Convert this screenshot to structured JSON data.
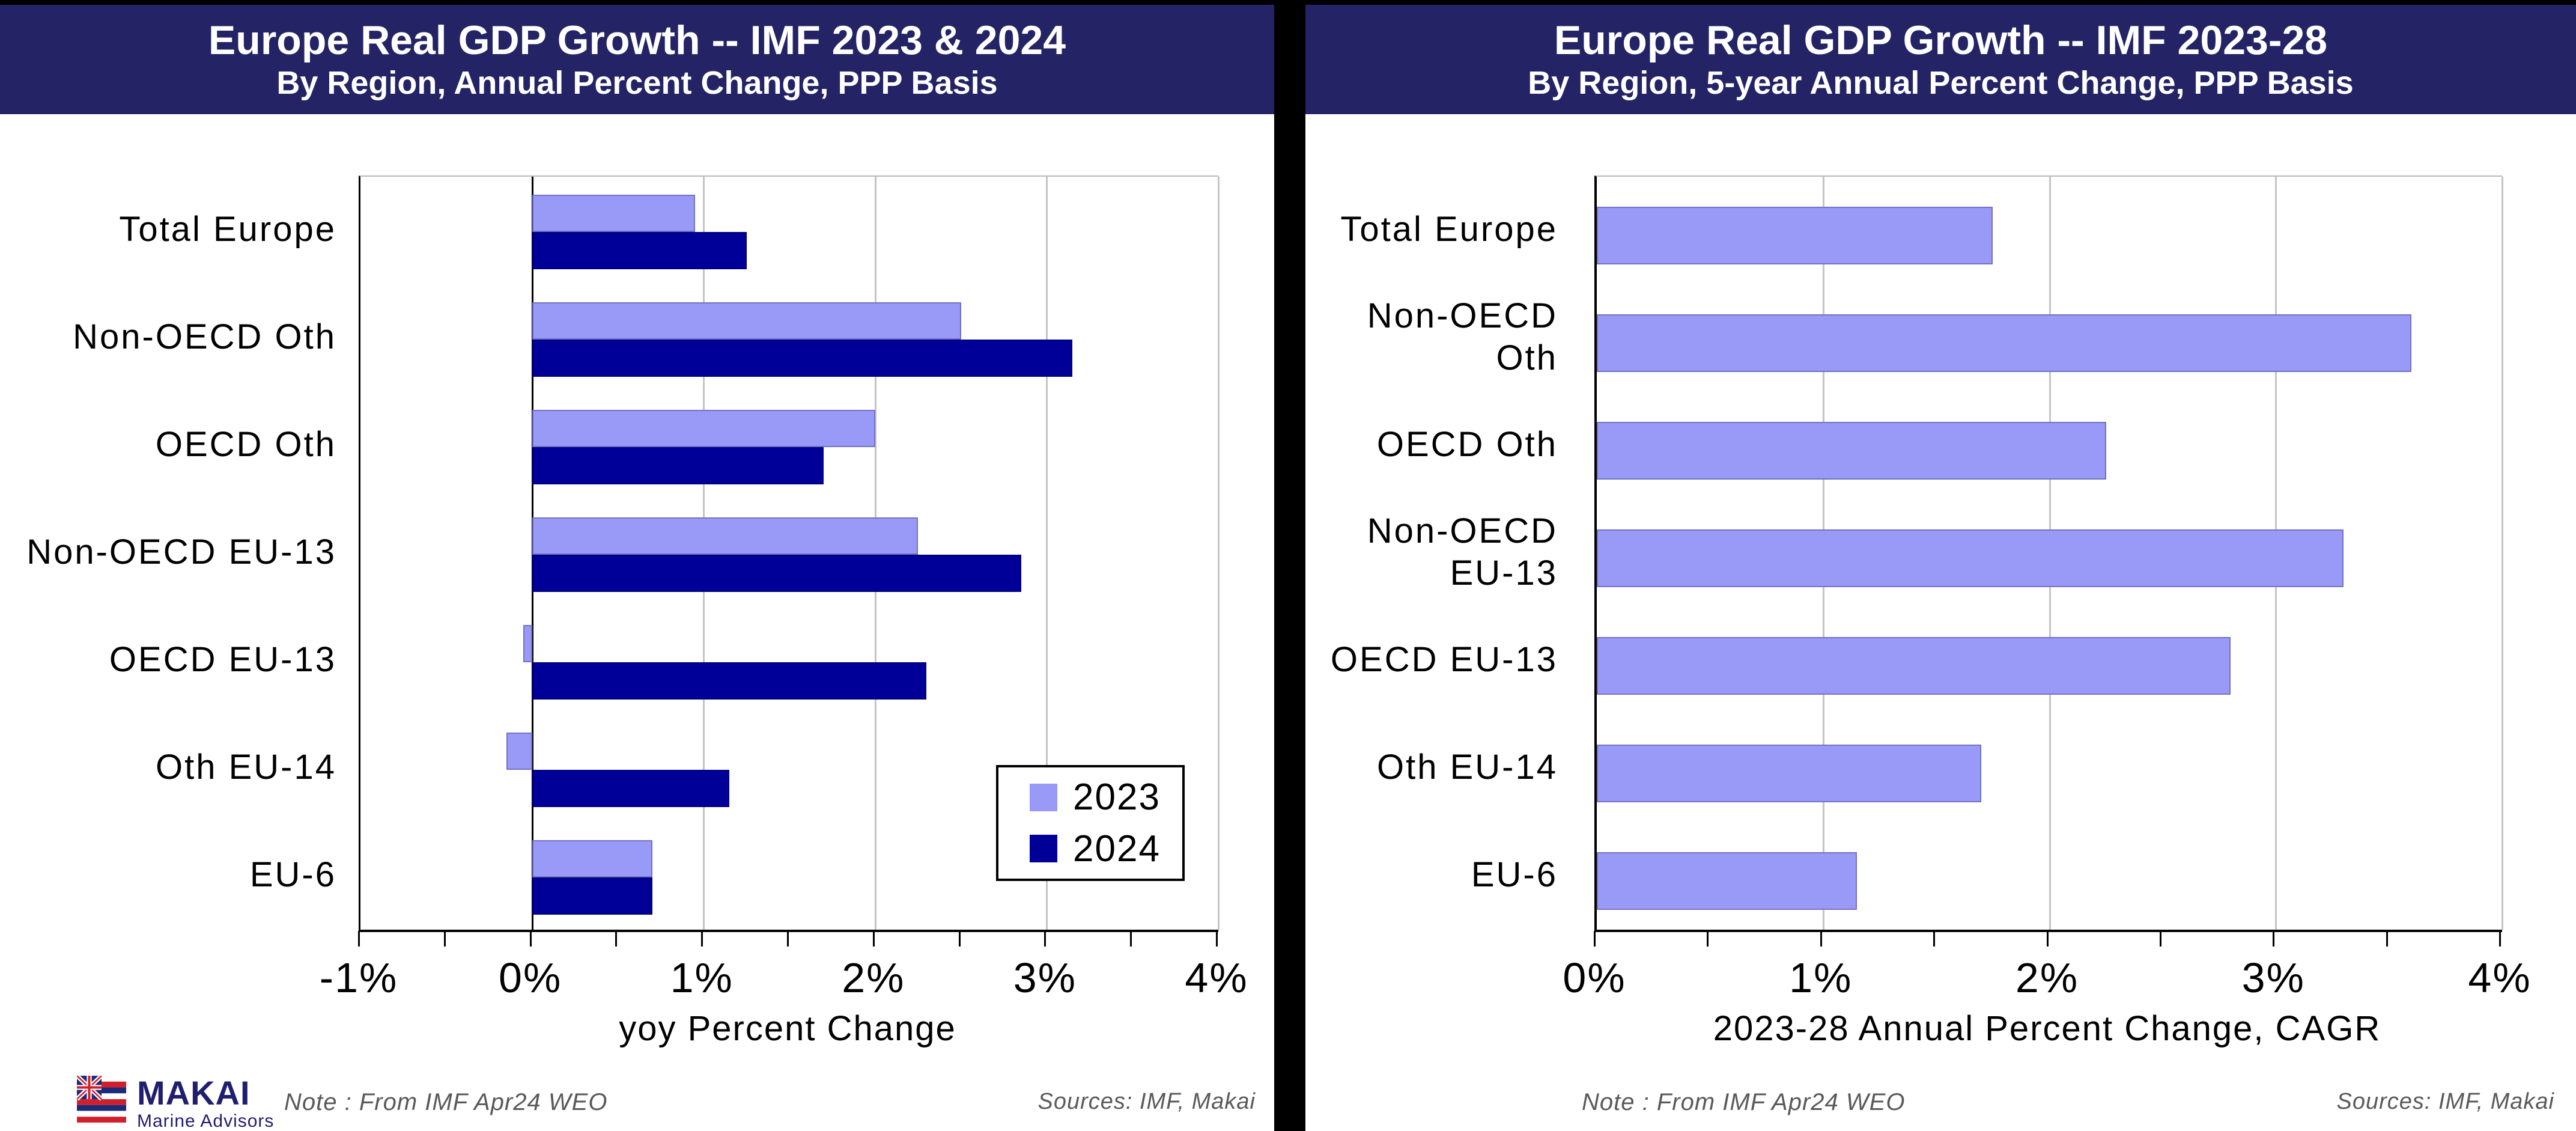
{
  "colors": {
    "title_bar_bg": "#232366",
    "series_2023": "#9999F8",
    "series_2024": "#000099",
    "gridline": "#C4C4C4",
    "note_text": "#595959",
    "divider": "#000000"
  },
  "chart_data": [
    {
      "type": "bar",
      "orientation": "horizontal",
      "title": "Europe Real GDP Growth -- IMF 2023 & 2024",
      "subtitle": "By Region, Annual Percent Change, PPP Basis",
      "categories": [
        "Total Europe",
        "Non-OECD Oth",
        "OECD Oth",
        "Non-OECD EU-13",
        "OECD EU-13",
        "Oth EU-14",
        "EU-6"
      ],
      "series": [
        {
          "name": "2023",
          "color": "#9999F8",
          "values": [
            0.95,
            2.5,
            2.0,
            2.25,
            -0.05,
            -0.15,
            0.7
          ]
        },
        {
          "name": "2024",
          "color": "#000099",
          "values": [
            1.25,
            3.15,
            1.7,
            2.85,
            2.3,
            1.15,
            0.7
          ]
        }
      ],
      "xlabel": "yoy Percent Change",
      "xlim": [
        -1,
        4
      ],
      "xtick_step": 1,
      "minor_tick_step": 0.5,
      "tick_format": "percent",
      "grid": true,
      "legend_position": "inside-right"
    },
    {
      "type": "bar",
      "orientation": "horizontal",
      "title": "Europe Real GDP Growth -- IMF 2023-28",
      "subtitle": "By Region, 5-year Annual Percent Change, PPP Basis",
      "categories": [
        "Total Europe",
        "Non-OECD\nOth",
        "OECD Oth",
        "Non-OECD\nEU-13",
        "OECD EU-13",
        "Oth EU-14",
        "EU-6"
      ],
      "series": [
        {
          "name": "2023-28 CAGR",
          "color": "#9999F8",
          "values": [
            1.75,
            3.6,
            2.25,
            3.3,
            2.8,
            1.7,
            1.15
          ]
        }
      ],
      "xlabel": "2023-28 Annual Percent Change, CAGR",
      "xlim": [
        0,
        4
      ],
      "xtick_step": 1,
      "minor_tick_step": 0.5,
      "tick_format": "percent",
      "grid": true,
      "legend_position": "none"
    }
  ],
  "footnote": {
    "note": "Note : From IMF Apr24 WEO",
    "sources": "Sources:  IMF,  Makai"
  },
  "logo": {
    "name": "MAKAI",
    "tagline": "Marine Advisors"
  }
}
